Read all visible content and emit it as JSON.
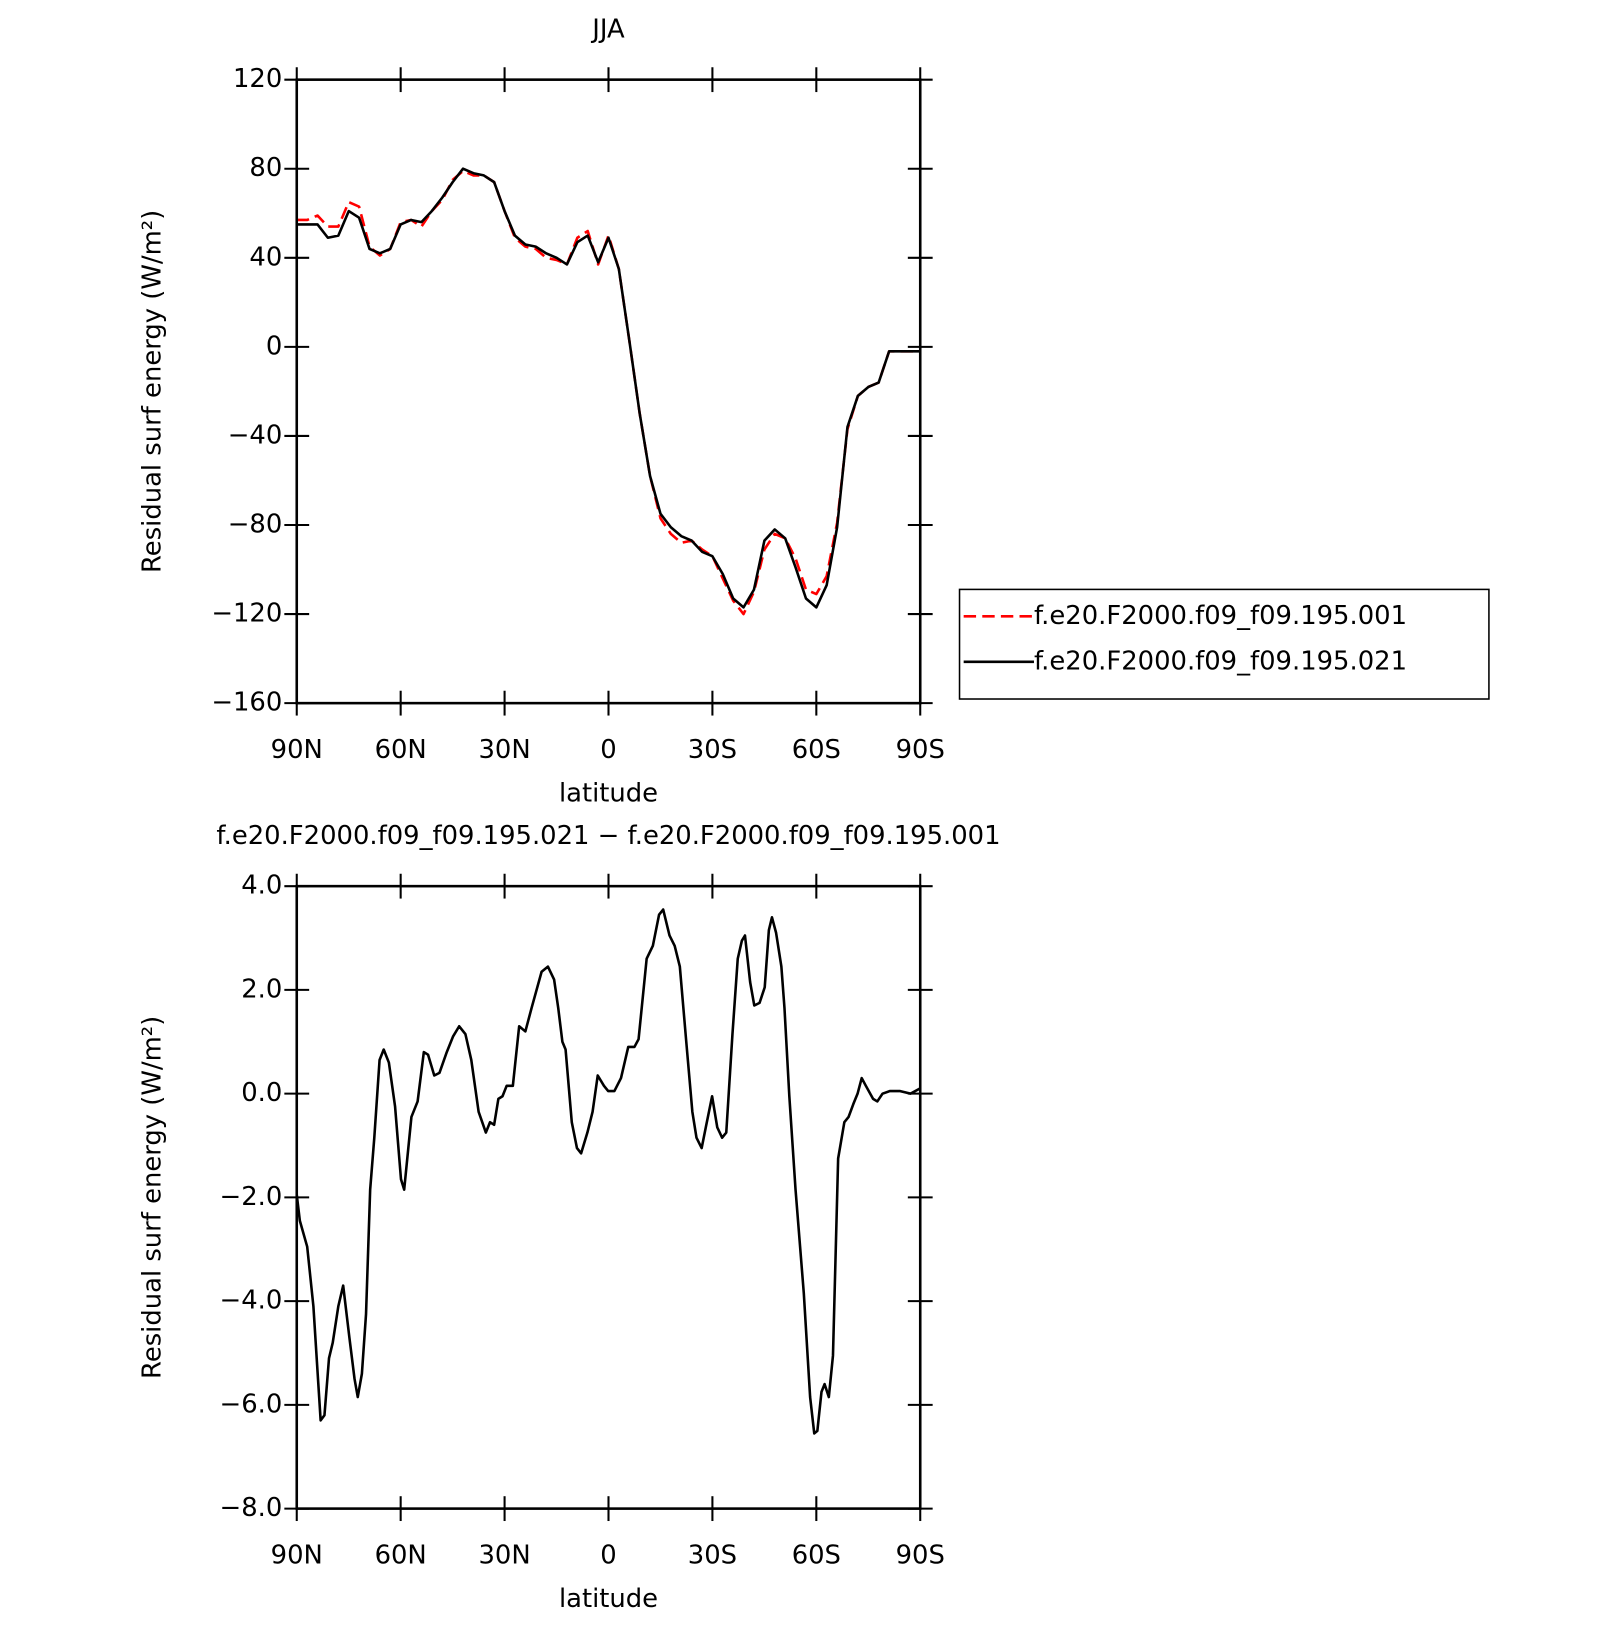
{
  "chart_data": [
    {
      "type": "line",
      "title": "JJA",
      "xlabel": "latitude",
      "ylabel": "Residual surf energy (W/m²)",
      "x": [
        90,
        87,
        84,
        81,
        78,
        75,
        72,
        69,
        66,
        63,
        60,
        57,
        54,
        51,
        48,
        45,
        42,
        39,
        36,
        33,
        30,
        27,
        24,
        21,
        18,
        15,
        12,
        9,
        6,
        3,
        0,
        -3,
        -6,
        -9,
        -12,
        -15,
        -18,
        -21,
        -24,
        -27,
        -30,
        -33,
        -36,
        -39,
        -42,
        -45,
        -48,
        -51,
        -54,
        -57,
        -60,
        -63,
        -66,
        -69,
        -72,
        -75,
        -78,
        -81,
        -84,
        -87,
        -90
      ],
      "series": [
        {
          "name": "f.e20.F2000.f09_f09.195.001",
          "color": "#ff0000",
          "dash": true,
          "values": [
            57,
            57,
            59,
            54,
            54,
            65,
            63,
            45,
            41,
            44,
            56,
            57,
            54,
            61,
            66,
            75,
            79,
            77,
            77,
            74,
            61,
            49,
            45,
            44,
            40,
            39,
            37,
            49,
            52,
            37,
            50,
            35,
            3,
            -30,
            -58,
            -77,
            -84,
            -88,
            -87,
            -91,
            -94,
            -104,
            -114,
            -120,
            -110,
            -91,
            -84,
            -86,
            -95,
            -109,
            -111,
            -103,
            -79,
            -37,
            -22,
            -18,
            -16,
            -2,
            -2,
            -2,
            -2
          ]
        },
        {
          "name": "f.e20.F2000.f09_f09.195.021",
          "color": "#000000",
          "dash": false,
          "values": [
            55,
            55,
            55,
            49,
            50,
            61,
            58,
            44,
            42,
            44,
            55,
            57,
            56,
            61,
            67,
            74,
            80,
            78,
            77,
            74,
            61,
            50,
            46,
            45,
            42,
            40,
            37,
            47,
            50,
            38,
            49,
            35,
            3,
            -30,
            -58,
            -75,
            -81,
            -85,
            -87,
            -92,
            -94,
            -102,
            -113,
            -117,
            -109,
            -87,
            -82,
            -86,
            -99,
            -113,
            -117,
            -107,
            -81,
            -36,
            -22,
            -18,
            -16,
            -2,
            -2,
            -2,
            -2
          ]
        }
      ],
      "xlim": [
        90,
        -90
      ],
      "xticks": [
        {
          "value": 90,
          "label": "90N"
        },
        {
          "value": 60,
          "label": "60N"
        },
        {
          "value": 30,
          "label": "30N"
        },
        0,
        {
          "value": -30,
          "label": "30S"
        },
        {
          "value": -60,
          "label": "60S"
        },
        {
          "value": -90,
          "label": "90S"
        }
      ],
      "ylim": [
        -160,
        120
      ],
      "yticks": [
        {
          "value": -160,
          "label": "−160"
        },
        {
          "value": -120,
          "label": "−120"
        },
        {
          "value": -80,
          "label": "−80"
        },
        {
          "value": -40,
          "label": "−40"
        },
        0,
        40,
        80,
        120
      ],
      "legend": "right"
    },
    {
      "type": "line",
      "title": "f.e20.F2000.f09_f09.195.021 − f.e20.F2000.f09_f09.195.001",
      "xlabel": "latitude",
      "ylabel": "Residual surf energy (W/m²)",
      "x": [
        90,
        89.1,
        87,
        85.2,
        83.1,
        82,
        80.7,
        79.6,
        78,
        76.6,
        74.8,
        73.3,
        72.4,
        71.2,
        70,
        68.8,
        67.6,
        66.1,
        64.9,
        63.4,
        61.6,
        59.9,
        59,
        56.9,
        55.1,
        53.3,
        52.1,
        50.3,
        48.8,
        46.7,
        44.9,
        43.1,
        41.3,
        39.6,
        37.5,
        35.4,
        34.2,
        33,
        31.8,
        30.6,
        29.4,
        27.6,
        25.8,
        24,
        22.2,
        19.3,
        17.5,
        15.7,
        14.5,
        13.3,
        12.4,
        10.6,
        9.1,
        7.9,
        6.1,
        4.6,
        3.1,
        1.3,
        0.1,
        -1.7,
        -3.6,
        -5.7,
        -7.5,
        -8.7,
        -11,
        -12.8,
        -14.6,
        -15.8,
        -17.6,
        -19.1,
        -20.6,
        -22.4,
        -24.2,
        -25.4,
        -26.9,
        -28.1,
        -29.9,
        -31.4,
        -32.8,
        -34,
        -35.8,
        -37.3,
        -38.5,
        -39.4,
        -40.9,
        -42.1,
        -43.6,
        -45.1,
        -46.3,
        -47.2,
        -48.4,
        -49.9,
        -50.8,
        -52.2,
        -54,
        -56.4,
        -58.2,
        -59.4,
        -60.3,
        -61.5,
        -62.4,
        -63.6,
        -64.8,
        -66.3,
        -68.1,
        -69.3,
        -70.7,
        -71.9,
        -73.1,
        -74.3,
        -76.4,
        -77.6,
        -79.1,
        -81.2,
        -84.2,
        -87.2,
        -89.9
      ],
      "values": [
        -1.95,
        -2.45,
        -2.95,
        -4.1,
        -6.3,
        -6.2,
        -5.1,
        -4.8,
        -4.1,
        -3.7,
        -4.7,
        -5.5,
        -5.85,
        -5.4,
        -4.25,
        -1.85,
        -0.85,
        0.65,
        0.85,
        0.6,
        -0.25,
        -1.65,
        -1.85,
        -0.45,
        -0.15,
        0.8,
        0.75,
        0.35,
        0.4,
        0.8,
        1.1,
        1.3,
        1.15,
        0.65,
        -0.35,
        -0.75,
        -0.55,
        -0.6,
        -0.1,
        -0.05,
        0.15,
        0.15,
        1.3,
        1.2,
        1.65,
        2.35,
        2.45,
        2.2,
        1.65,
        1.0,
        0.85,
        -0.55,
        -1.05,
        -1.15,
        -0.75,
        -0.35,
        0.35,
        0.15,
        0.05,
        0.05,
        0.3,
        0.9,
        0.9,
        1.05,
        2.6,
        2.85,
        3.45,
        3.55,
        3.05,
        2.85,
        2.45,
        1.05,
        -0.35,
        -0.85,
        -1.05,
        -0.65,
        -0.05,
        -0.65,
        -0.85,
        -0.75,
        1.15,
        2.6,
        2.95,
        3.05,
        2.15,
        1.7,
        1.75,
        2.05,
        3.15,
        3.4,
        3.1,
        2.45,
        1.65,
        -0.05,
        -1.85,
        -3.85,
        -5.85,
        -6.55,
        -6.5,
        -5.75,
        -5.6,
        -5.85,
        -5.05,
        -1.25,
        -0.55,
        -0.45,
        -0.2,
        0,
        0.3,
        0.15,
        -0.1,
        -0.15,
        0,
        0.05,
        0.05,
        0,
        0.1
      ],
      "color": "#000000",
      "xlim": [
        90,
        -90
      ],
      "xticks": [
        {
          "value": 90,
          "label": "90N"
        },
        {
          "value": 60,
          "label": "60N"
        },
        {
          "value": 30,
          "label": "30N"
        },
        0,
        {
          "value": -30,
          "label": "30S"
        },
        {
          "value": -60,
          "label": "60S"
        },
        {
          "value": -90,
          "label": "90S"
        }
      ],
      "ylim": [
        -8,
        4
      ],
      "yticks": [
        {
          "value": -8,
          "label": "−8.0"
        },
        {
          "value": -6,
          "label": "−6.0"
        },
        {
          "value": -4,
          "label": "−4.0"
        },
        {
          "value": -2,
          "label": "−2.0"
        },
        {
          "value": 0,
          "label": "0.0"
        },
        {
          "value": 2,
          "label": "2.0"
        },
        {
          "value": 4,
          "label": "4.0"
        }
      ]
    }
  ]
}
